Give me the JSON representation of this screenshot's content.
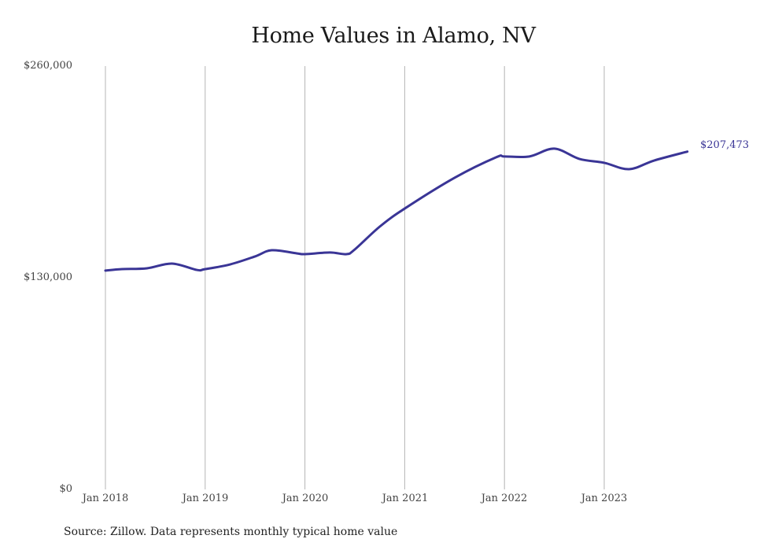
{
  "chart_data": {
    "type": "line",
    "title": "Home Values in Alamo, NV",
    "xlabel": "",
    "ylabel": "",
    "ylim": [
      0,
      260000
    ],
    "y_ticks": [
      "$0",
      "$130,000",
      "$260,000"
    ],
    "y_tick_values": [
      0,
      130000,
      260000
    ],
    "x_ticks": [
      "Jan 2018",
      "Jan 2019",
      "Jan 2020",
      "Jan 2021",
      "Jan 2022",
      "Jan 2023"
    ],
    "grid": {
      "vertical": true,
      "horizontal": false
    },
    "legend": null,
    "series": [
      {
        "name": "Typical home value",
        "color": "#3a3596",
        "end_label": "$207,473",
        "x": [
          "2018-01",
          "2018-03",
          "2018-06",
          "2018-09",
          "2018-12",
          "2019-01",
          "2019-04",
          "2019-07",
          "2019-09",
          "2019-12",
          "2020-01",
          "2020-04",
          "2020-06",
          "2020-07",
          "2020-10",
          "2021-01",
          "2021-07",
          "2021-12",
          "2022-01",
          "2022-04",
          "2022-07",
          "2022-10",
          "2023-01",
          "2023-04",
          "2023-07",
          "2023-11"
        ],
        "values": [
          134400,
          135300,
          135800,
          138700,
          134800,
          135300,
          138200,
          143100,
          146900,
          145000,
          144500,
          145500,
          144500,
          147400,
          161400,
          172500,
          191400,
          204000,
          204500,
          204500,
          209300,
          203000,
          200600,
          196700,
          202000,
          207473
        ]
      }
    ]
  },
  "title": "Home Values in Alamo, NV",
  "y_axis": {
    "top": "$260,000",
    "mid": "$130,000",
    "bottom": "$0"
  },
  "x_axis": [
    "Jan 2018",
    "Jan 2019",
    "Jan 2020",
    "Jan 2021",
    "Jan 2022",
    "Jan 2023"
  ],
  "end_label": "$207,473",
  "source": "Source: Zillow. Data represents monthly typical home value"
}
